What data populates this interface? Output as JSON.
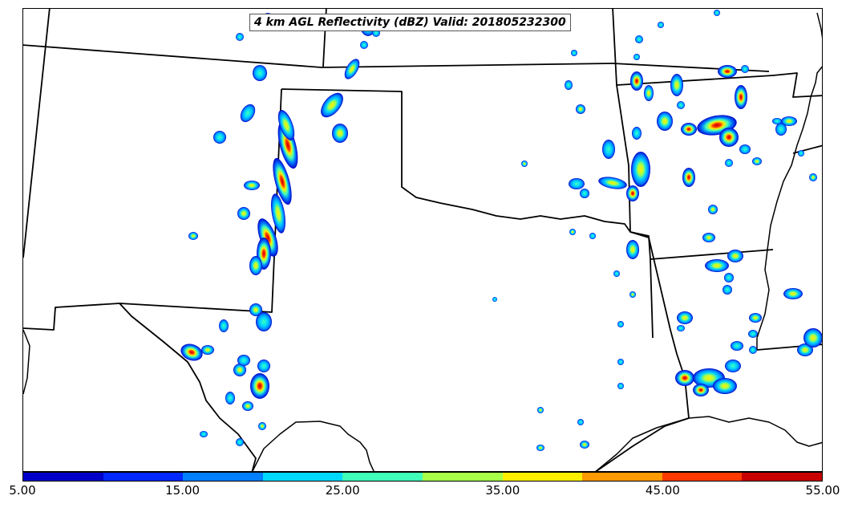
{
  "title": "4 km AGL Reflectivity (dBZ) Valid: 201805232300",
  "colorbar": {
    "min": 5.0,
    "max": 55.0,
    "tick_labels": [
      "5.00",
      "15.00",
      "25.00",
      "35.00",
      "45.00",
      "55.00"
    ],
    "colors": [
      "#0000c8",
      "#0028ff",
      "#0080ff",
      "#00d8ff",
      "#40ffb8",
      "#a8ff48",
      "#ffee00",
      "#ff9a00",
      "#ff3a00",
      "#c80000"
    ]
  },
  "colors": {
    "boundary": "#000000",
    "background": "#ffffff"
  }
}
